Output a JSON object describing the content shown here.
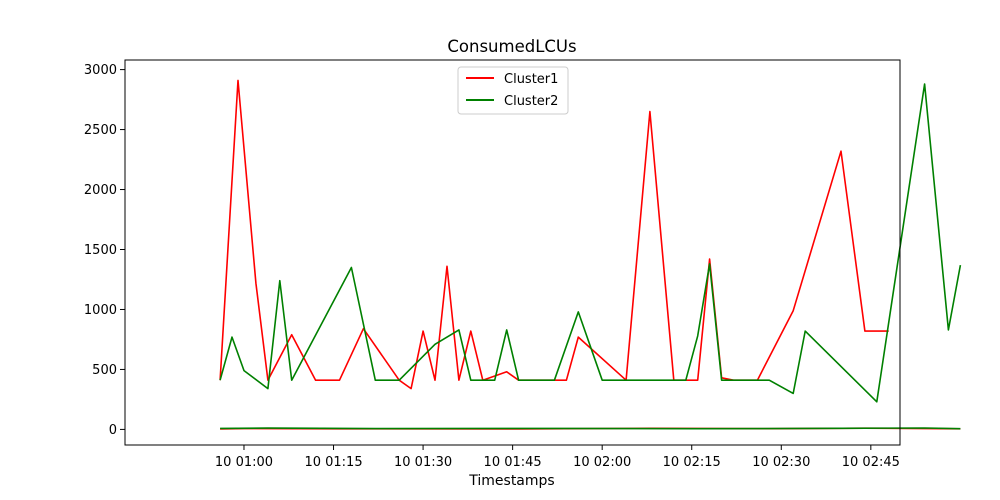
{
  "chart_data": {
    "type": "line",
    "title": "ConsumedLCUs",
    "xlabel": "Timestamps",
    "ylabel": "",
    "xlim": [
      "00:46",
      "02:58"
    ],
    "ylim": [
      -130,
      3080
    ],
    "yticks": [
      0,
      500,
      1000,
      1500,
      2000,
      2500,
      3000
    ],
    "xticks": [
      "10 01:00",
      "10 01:15",
      "10 01:30",
      "10 01:45",
      "10 02:00",
      "10 02:15",
      "10 02:30",
      "10 02:45"
    ],
    "xtick_times": [
      "01:00",
      "01:15",
      "01:30",
      "01:45",
      "02:00",
      "02:15",
      "02:30",
      "02:45"
    ],
    "grid": false,
    "legend_position": "upper center",
    "series": [
      {
        "name": "Cluster1",
        "color": "#ff0000",
        "points": [
          [
            "00:56",
            410
          ],
          [
            "00:59",
            2910
          ],
          [
            "01:02",
            1220
          ],
          [
            "01:04",
            410
          ],
          [
            "01:08",
            790
          ],
          [
            "01:12",
            410
          ],
          [
            "01:16",
            410
          ],
          [
            "01:20",
            840
          ],
          [
            "01:26",
            410
          ],
          [
            "01:28",
            340
          ],
          [
            "01:30",
            820
          ],
          [
            "01:32",
            410
          ],
          [
            "01:34",
            1360
          ],
          [
            "01:36",
            410
          ],
          [
            "01:38",
            820
          ],
          [
            "01:40",
            410
          ],
          [
            "01:44",
            480
          ],
          [
            "01:46",
            410
          ],
          [
            "01:54",
            410
          ],
          [
            "01:56",
            770
          ],
          [
            "02:04",
            410
          ],
          [
            "02:08",
            2650
          ],
          [
            "02:12",
            410
          ],
          [
            "02:16",
            410
          ],
          [
            "02:18",
            1420
          ],
          [
            "02:20",
            430
          ],
          [
            "02:22",
            410
          ],
          [
            "02:26",
            410
          ],
          [
            "02:32",
            990
          ],
          [
            "02:40",
            2320
          ],
          [
            "02:44",
            820
          ],
          [
            "02:48",
            820
          ]
        ]
      },
      {
        "name": "Cluster2",
        "color": "#008000",
        "points": [
          [
            "00:56",
            410
          ],
          [
            "00:58",
            770
          ],
          [
            "01:00",
            490
          ],
          [
            "01:04",
            340
          ],
          [
            "01:06",
            1240
          ],
          [
            "01:08",
            410
          ],
          [
            "01:18",
            1350
          ],
          [
            "01:22",
            410
          ],
          [
            "01:26",
            410
          ],
          [
            "01:32",
            710
          ],
          [
            "01:36",
            830
          ],
          [
            "01:38",
            410
          ],
          [
            "01:42",
            410
          ],
          [
            "01:44",
            830
          ],
          [
            "01:46",
            410
          ],
          [
            "01:52",
            410
          ],
          [
            "01:56",
            980
          ],
          [
            "02:00",
            410
          ],
          [
            "02:14",
            410
          ],
          [
            "02:16",
            780
          ],
          [
            "02:18",
            1380
          ],
          [
            "02:20",
            410
          ],
          [
            "02:28",
            410
          ],
          [
            "02:32",
            300
          ],
          [
            "02:34",
            820
          ],
          [
            "02:46",
            230
          ],
          [
            "02:54",
            2880
          ],
          [
            "02:58",
            830
          ],
          [
            "03:00",
            1370
          ]
        ]
      },
      {
        "name": "",
        "color": "#ff0000",
        "points": [
          [
            "00:56",
            4
          ],
          [
            "01:00",
            7
          ],
          [
            "01:16",
            5
          ],
          [
            "01:46",
            4
          ],
          [
            "02:08",
            9
          ],
          [
            "02:28",
            6
          ],
          [
            "02:44",
            10
          ],
          [
            "03:00",
            5
          ]
        ]
      },
      {
        "name": "",
        "color": "#008000",
        "points": [
          [
            "00:56",
            8
          ],
          [
            "01:04",
            11
          ],
          [
            "01:22",
            7
          ],
          [
            "01:52",
            8
          ],
          [
            "02:16",
            6
          ],
          [
            "02:40",
            9
          ],
          [
            "02:54",
            12
          ],
          [
            "03:00",
            6
          ]
        ]
      }
    ]
  }
}
